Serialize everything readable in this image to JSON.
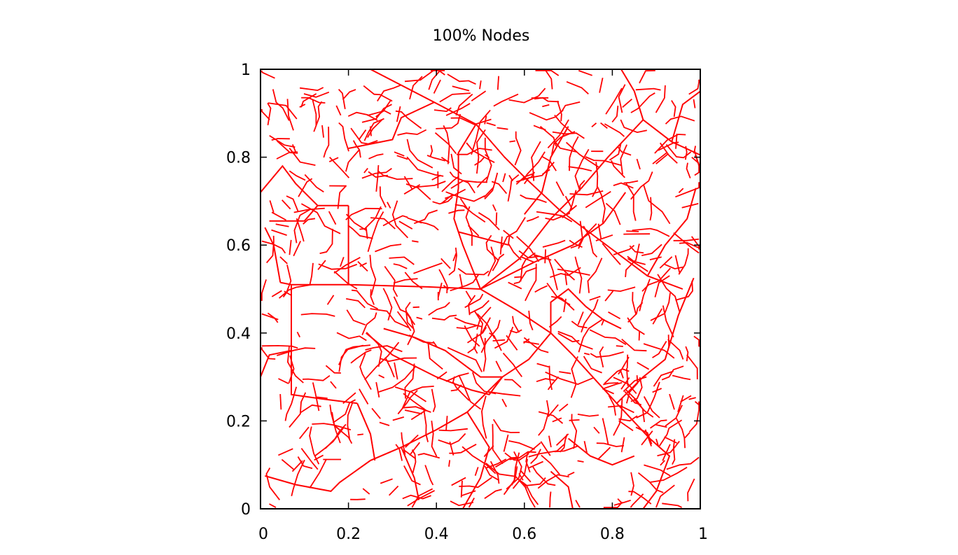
{
  "chart_data": {
    "type": "line",
    "title": "100% Nodes",
    "xlabel": "",
    "ylabel": "",
    "xlim": [
      0,
      1
    ],
    "ylim": [
      0,
      1
    ],
    "x_ticks": [
      {
        "value": 0,
        "label": "0"
      },
      {
        "value": 0.2,
        "label": "0.2"
      },
      {
        "value": 0.4,
        "label": "0.4"
      },
      {
        "value": 0.6,
        "label": "0.6"
      },
      {
        "value": 0.8,
        "label": "0.8"
      },
      {
        "value": 1,
        "label": "1"
      }
    ],
    "y_ticks": [
      {
        "value": 0,
        "label": "0"
      },
      {
        "value": 0.2,
        "label": "0.2"
      },
      {
        "value": 0.4,
        "label": "0.4"
      },
      {
        "value": 0.6,
        "label": "0.6"
      },
      {
        "value": 0.8,
        "label": "0.8"
      },
      {
        "value": 1,
        "label": "1"
      }
    ],
    "grid": false,
    "series_color": "#ff0000",
    "trunk_paths": [
      [
        [
          0.25,
          1.0
        ],
        [
          0.395,
          0.925
        ],
        [
          0.49,
          0.875
        ],
        [
          0.555,
          0.8
        ],
        [
          0.605,
          0.75
        ],
        [
          0.68,
          0.68
        ],
        [
          0.8,
          0.59
        ],
        [
          0.88,
          0.53
        ],
        [
          0.96,
          0.5
        ]
      ],
      [
        [
          0.49,
          0.875
        ],
        [
          0.45,
          0.81
        ],
        [
          0.45,
          0.73
        ],
        [
          0.44,
          0.66
        ],
        [
          0.46,
          0.6
        ],
        [
          0.5,
          0.5
        ]
      ],
      [
        [
          1.0,
          0.805
        ],
        [
          0.935,
          0.835
        ],
        [
          0.87,
          0.885
        ],
        [
          0.79,
          0.8
        ],
        [
          0.73,
          0.73
        ],
        [
          0.66,
          0.66
        ],
        [
          0.59,
          0.57
        ],
        [
          0.5,
          0.5
        ],
        [
          0.38,
          0.505
        ],
        [
          0.2,
          0.51
        ],
        [
          0.07,
          0.51
        ],
        [
          0.045,
          0.515
        ]
      ],
      [
        [
          0.07,
          0.51
        ],
        [
          0.07,
          0.26
        ],
        [
          0.14,
          0.25
        ],
        [
          0.22,
          0.24
        ]
      ],
      [
        [
          0.45,
          0.63
        ],
        [
          0.565,
          0.6
        ]
      ],
      [
        [
          0.5,
          0.5
        ],
        [
          0.585,
          0.45
        ],
        [
          0.66,
          0.4
        ],
        [
          0.71,
          0.35
        ],
        [
          0.81,
          0.24
        ],
        [
          0.885,
          0.16
        ],
        [
          0.93,
          0.12
        ],
        [
          0.9,
          0.04
        ],
        [
          0.87,
          0.0
        ]
      ],
      [
        [
          0.985,
          0.525
        ],
        [
          0.95,
          0.44
        ],
        [
          0.92,
          0.34
        ],
        [
          0.87,
          0.3
        ],
        [
          0.81,
          0.24
        ]
      ],
      [
        [
          0.66,
          0.4
        ],
        [
          0.61,
          0.34
        ],
        [
          0.55,
          0.3
        ],
        [
          0.47,
          0.22
        ],
        [
          0.4,
          0.18
        ],
        [
          0.32,
          0.14
        ],
        [
          0.25,
          0.11
        ],
        [
          0.18,
          0.06
        ],
        [
          0.16,
          0.04
        ],
        [
          0.08,
          0.055
        ],
        [
          0.01,
          0.075
        ]
      ],
      [
        [
          0.47,
          0.22
        ],
        [
          0.52,
          0.14
        ],
        [
          0.5,
          0.07
        ],
        [
          0.46,
          0.0
        ]
      ],
      [
        [
          0.2,
          0.69
        ],
        [
          0.2,
          0.51
        ]
      ],
      [
        [
          0.13,
          0.69
        ],
        [
          0.2,
          0.69
        ]
      ],
      [
        [
          0.0,
          0.72
        ],
        [
          0.05,
          0.78
        ],
        [
          0.08,
          0.74
        ],
        [
          0.13,
          0.69
        ]
      ],
      [
        [
          0.13,
          0.69
        ],
        [
          0.1,
          0.655
        ],
        [
          0.02,
          0.655
        ]
      ],
      [
        [
          0.2,
          0.82
        ],
        [
          0.3,
          0.84
        ],
        [
          0.32,
          0.89
        ],
        [
          0.395,
          0.925
        ]
      ],
      [
        [
          0.7,
          0.87
        ],
        [
          0.66,
          0.8
        ],
        [
          0.64,
          0.72
        ],
        [
          0.6,
          0.67
        ]
      ],
      [
        [
          0.5,
          0.5
        ],
        [
          0.62,
          0.56
        ],
        [
          0.71,
          0.6
        ],
        [
          0.78,
          0.65
        ],
        [
          0.83,
          0.72
        ]
      ],
      [
        [
          0.28,
          0.41
        ],
        [
          0.35,
          0.39
        ],
        [
          0.42,
          0.36
        ],
        [
          0.5,
          0.3
        ],
        [
          0.55,
          0.3
        ]
      ],
      [
        [
          0.55,
          0.3
        ],
        [
          0.52,
          0.26
        ],
        [
          0.48,
          0.27
        ],
        [
          0.4,
          0.3
        ],
        [
          0.3,
          0.35
        ],
        [
          0.24,
          0.4
        ]
      ],
      [
        [
          0.32,
          0.14
        ],
        [
          0.35,
          0.07
        ],
        [
          0.36,
          0.02
        ]
      ],
      [
        [
          0.66,
          0.4
        ],
        [
          0.66,
          0.47
        ],
        [
          0.7,
          0.5
        ],
        [
          0.74,
          0.46
        ],
        [
          0.78,
          0.43
        ],
        [
          0.82,
          0.41
        ]
      ],
      [
        [
          0.87,
          0.885
        ],
        [
          0.85,
          0.95
        ],
        [
          0.82,
          1.0
        ]
      ],
      [
        [
          0.935,
          0.835
        ],
        [
          0.96,
          0.92
        ],
        [
          1.0,
          0.95
        ]
      ],
      [
        [
          0.88,
          0.53
        ],
        [
          0.92,
          0.6
        ],
        [
          0.97,
          0.66
        ],
        [
          0.99,
          0.73
        ]
      ],
      [
        [
          0.045,
          0.515
        ],
        [
          0.03,
          0.6
        ],
        [
          0.01,
          0.64
        ]
      ],
      [
        [
          0.07,
          0.36
        ],
        [
          0.02,
          0.35
        ],
        [
          0.0,
          0.3
        ]
      ],
      [
        [
          0.22,
          0.24
        ],
        [
          0.25,
          0.17
        ],
        [
          0.26,
          0.11
        ]
      ],
      [
        [
          0.7,
          0.16
        ],
        [
          0.75,
          0.12
        ],
        [
          0.8,
          0.1
        ],
        [
          0.85,
          0.12
        ]
      ],
      [
        [
          0.66,
          0.085
        ],
        [
          0.7,
          0.05
        ],
        [
          0.71,
          0.0
        ]
      ]
    ],
    "twig_seed": 20240613,
    "twig_count": 650
  }
}
